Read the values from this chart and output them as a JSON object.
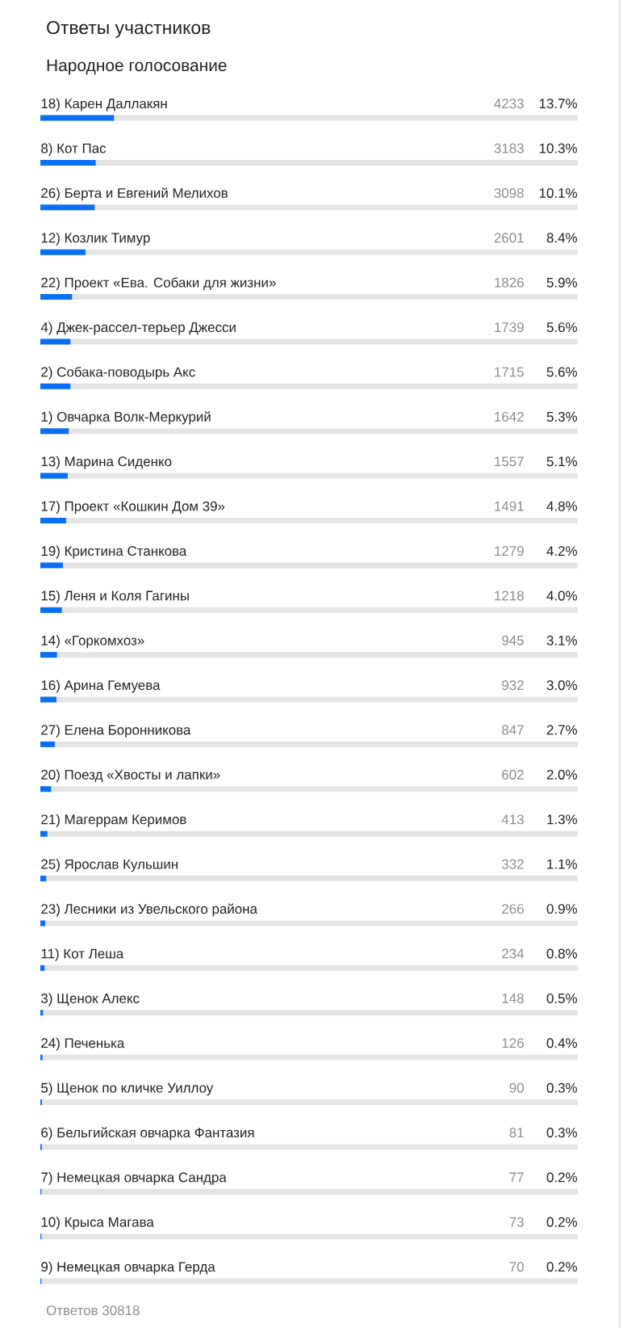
{
  "chart_data": {
    "type": "bar",
    "orientation": "horizontal",
    "title": "Ответы участников",
    "subtitle": "Народное голосование",
    "categories": [
      "18) Карен Даллакян",
      "8) Кот Пас",
      "26) Берта и Евгений Мелихов",
      "12) Козлик Тимур",
      "22) Проект «Ева. Собаки для жизни»",
      "4) Джек-рассел-терьер Джесси",
      "2) Собака-поводырь Акс",
      "1) Овчарка Волк-Меркурий",
      "13) Марина Сиденко",
      "17) Проект «Кошкин Дом 39»",
      "19) Кристина Станкова",
      "15) Леня и Коля Гагины",
      "14) «Горкомхоз»",
      "16) Арина Гемуева",
      "27) Елена Боронникова",
      "20) Поезд «Хвосты и лапки»",
      "21) Магеррам Керимов",
      "25) Ярослав Кульшин",
      "23) Лесники из Увельского района",
      "11) Кот Леша",
      "3) Щенок Алекс",
      "24) Печенька",
      "5) Щенок по кличке Уиллоу",
      "6) Бельгийская овчарка Фантазия",
      "7) Немецкая овчарка Сандра",
      "10) Крыса Магава",
      "9) Немецкая овчарка Герда"
    ],
    "values": [
      13.7,
      10.3,
      10.1,
      8.4,
      5.9,
      5.6,
      5.6,
      5.3,
      5.1,
      4.8,
      4.2,
      4.0,
      3.1,
      3.0,
      2.7,
      2.0,
      1.3,
      1.1,
      0.9,
      0.8,
      0.5,
      0.4,
      0.3,
      0.3,
      0.2,
      0.2,
      0.2
    ],
    "value_labels": [
      "13.7%",
      "10.3%",
      "10.1%",
      "8.4%",
      "5.9%",
      "5.6%",
      "5.6%",
      "5.3%",
      "5.1%",
      "4.8%",
      "4.2%",
      "4.0%",
      "3.1%",
      "3.0%",
      "2.7%",
      "2.0%",
      "1.3%",
      "1.1%",
      "0.9%",
      "0.8%",
      "0.5%",
      "0.4%",
      "0.3%",
      "0.3%",
      "0.2%",
      "0.2%",
      "0.2%"
    ],
    "color": "#0b6ff5",
    "annotations": [
      "4233",
      "3183",
      "3098",
      "2601",
      "1826",
      "1739",
      "1715",
      "1642",
      "1557",
      "1491",
      "1279",
      "1218",
      "945",
      "932",
      "847",
      "602",
      "413",
      "332",
      "266",
      "234",
      "148",
      "126",
      "90",
      "81",
      "77",
      "73",
      "70",
      "Ответов 30818"
    ]
  }
}
